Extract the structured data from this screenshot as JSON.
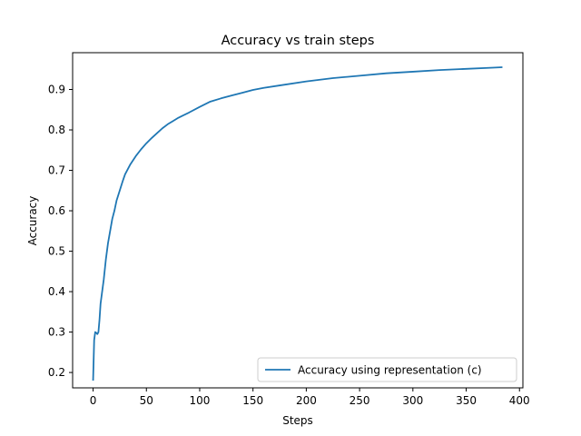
{
  "chart_data": {
    "type": "line",
    "title": "Accuracy vs train steps",
    "xlabel": "Steps",
    "ylabel": "Accuracy",
    "xlim": [
      -19.2,
      403.2
    ],
    "ylim": [
      0.162,
      0.991
    ],
    "xticks": [
      0,
      50,
      100,
      150,
      200,
      250,
      300,
      350,
      400
    ],
    "yticks": [
      0.2,
      0.3,
      0.4,
      0.5,
      0.6,
      0.7,
      0.8,
      0.9
    ],
    "xtick_labels": [
      "0",
      "50",
      "100",
      "150",
      "200",
      "250",
      "300",
      "350",
      "400"
    ],
    "ytick_labels": [
      "0.2",
      "0.3",
      "0.4",
      "0.5",
      "0.6",
      "0.7",
      "0.8",
      "0.9"
    ],
    "grid": false,
    "legend_position": "lower-right",
    "series": [
      {
        "name": "Accuracy using representation (c)",
        "color": "#1f77b4",
        "x": [
          0,
          1,
          2,
          3,
          4,
          5,
          6,
          7,
          8,
          9,
          10,
          12,
          14,
          16,
          18,
          20,
          22,
          25,
          28,
          30,
          35,
          40,
          45,
          50,
          55,
          60,
          65,
          70,
          75,
          80,
          90,
          100,
          110,
          120,
          130,
          140,
          150,
          160,
          175,
          200,
          225,
          250,
          275,
          300,
          325,
          350,
          375,
          384
        ],
        "y": [
          0.18,
          0.28,
          0.3,
          0.298,
          0.295,
          0.3,
          0.33,
          0.37,
          0.39,
          0.41,
          0.43,
          0.48,
          0.52,
          0.55,
          0.58,
          0.6,
          0.625,
          0.65,
          0.675,
          0.69,
          0.715,
          0.735,
          0.752,
          0.767,
          0.78,
          0.792,
          0.804,
          0.814,
          0.822,
          0.83,
          0.843,
          0.857,
          0.87,
          0.878,
          0.885,
          0.892,
          0.899,
          0.904,
          0.91,
          0.92,
          0.928,
          0.934,
          0.94,
          0.944,
          0.948,
          0.951,
          0.954,
          0.955
        ]
      }
    ]
  }
}
